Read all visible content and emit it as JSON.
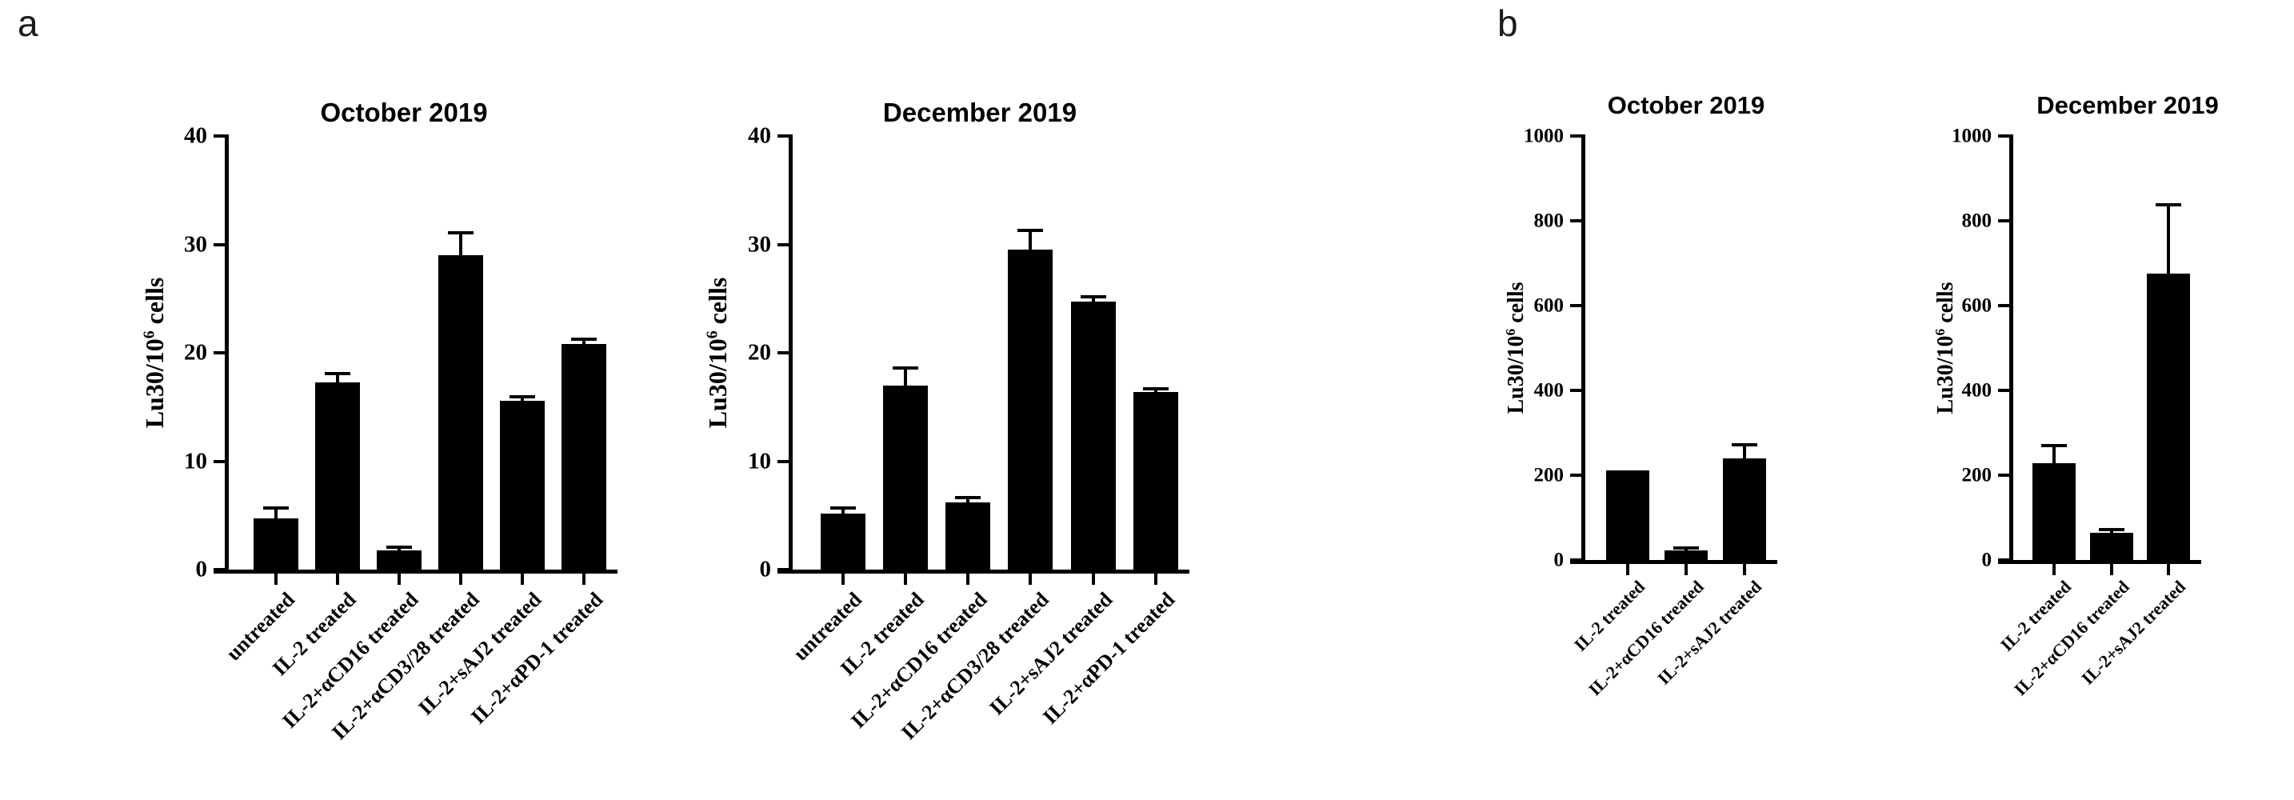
{
  "figure": {
    "panel_labels": [
      "a",
      "b"
    ],
    "background_color": "#ffffff",
    "ink_color": "#000000"
  },
  "chart_data": [
    {
      "panel": "a",
      "type": "bar",
      "title": "October 2019",
      "ylabel": "Lu30/10^6 cells",
      "ylabel_parts": {
        "base": "Lu30/10",
        "sup": "6",
        "rest": " cells"
      },
      "xlabel": "",
      "ylim": [
        0,
        40
      ],
      "yticks": [
        0,
        10,
        20,
        30,
        40
      ],
      "grid": false,
      "legend": "none",
      "bar_color": "#000000",
      "categories": [
        "untreated",
        "IL-2 treated",
        "IL-2+αCD16 treated",
        "IL-2+αCD3/28 treated",
        "IL-2+sAJ2 treated",
        "IL-2+αPD-1 treated"
      ],
      "values": [
        4.7,
        17.3,
        1.8,
        29.0,
        15.6,
        20.8
      ],
      "errors_plus": [
        0.9,
        0.7,
        0.2,
        2.0,
        0.3,
        0.4
      ]
    },
    {
      "panel": "a",
      "type": "bar",
      "title": "December 2019",
      "ylabel": "Lu30/10^6 cells",
      "ylabel_parts": {
        "base": "Lu30/10",
        "sup": "6",
        "rest": " cells"
      },
      "xlabel": "",
      "ylim": [
        0,
        40
      ],
      "yticks": [
        0,
        10,
        20,
        30,
        40
      ],
      "grid": false,
      "legend": "none",
      "bar_color": "#000000",
      "categories": [
        "untreated",
        "IL-2 treated",
        "IL-2+αCD16 treated",
        "IL-2+αCD3/28 treated",
        "IL-2+sAJ2 treated",
        "IL-2+αPD-1 treated"
      ],
      "values": [
        5.2,
        17.0,
        6.2,
        29.5,
        24.7,
        16.4
      ],
      "errors_plus": [
        0.4,
        1.5,
        0.4,
        1.7,
        0.4,
        0.2
      ]
    },
    {
      "panel": "b",
      "type": "bar",
      "title": "October 2019",
      "ylabel": "Lu30/10^6 cells",
      "ylabel_parts": {
        "base": "Lu30/10",
        "sup": "6",
        "rest": " cells"
      },
      "xlabel": "",
      "ylim": [
        0,
        1000
      ],
      "yticks": [
        0,
        200,
        400,
        600,
        800,
        1000
      ],
      "grid": false,
      "legend": "none",
      "bar_color": "#000000",
      "categories": [
        "IL-2 treated",
        "IL-2+αCD16 treated",
        "IL-2+sAJ2 treated"
      ],
      "values": [
        212,
        22,
        240
      ],
      "errors_plus": [
        0,
        5,
        30
      ]
    },
    {
      "panel": "b",
      "type": "bar",
      "title": "December 2019",
      "ylabel": "Lu30/10^6 cells",
      "ylabel_parts": {
        "base": "Lu30/10",
        "sup": "6",
        "rest": " cells"
      },
      "xlabel": "",
      "ylim": [
        0,
        1000
      ],
      "yticks": [
        0,
        200,
        400,
        600,
        800,
        1000
      ],
      "grid": false,
      "legend": "none",
      "bar_color": "#000000",
      "categories": [
        "IL-2 treated",
        "IL-2+αCD16 treated",
        "IL-2+sAJ2 treated"
      ],
      "values": [
        228,
        64,
        675
      ],
      "errors_plus": [
        40,
        6,
        160
      ]
    }
  ]
}
